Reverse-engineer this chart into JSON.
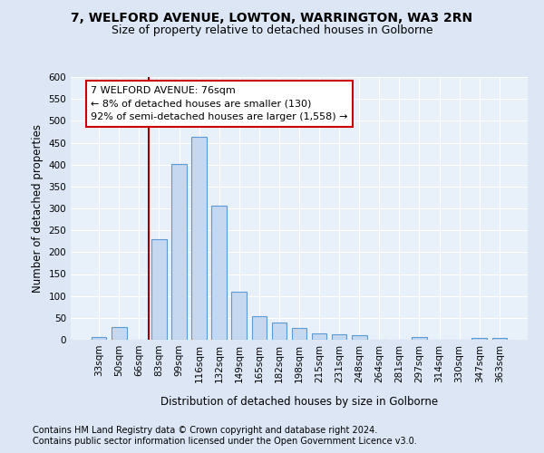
{
  "title": "7, WELFORD AVENUE, LOWTON, WARRINGTON, WA3 2RN",
  "subtitle": "Size of property relative to detached houses in Golborne",
  "xlabel": "Distribution of detached houses by size in Golborne",
  "ylabel": "Number of detached properties",
  "footer1": "Contains HM Land Registry data © Crown copyright and database right 2024.",
  "footer2": "Contains public sector information licensed under the Open Government Licence v3.0.",
  "categories": [
    "33sqm",
    "50sqm",
    "66sqm",
    "83sqm",
    "99sqm",
    "116sqm",
    "132sqm",
    "149sqm",
    "165sqm",
    "182sqm",
    "198sqm",
    "215sqm",
    "231sqm",
    "248sqm",
    "264sqm",
    "281sqm",
    "297sqm",
    "314sqm",
    "330sqm",
    "347sqm",
    "363sqm"
  ],
  "values": [
    7,
    30,
    0,
    229,
    402,
    464,
    307,
    110,
    53,
    39,
    26,
    14,
    13,
    10,
    0,
    0,
    7,
    0,
    0,
    5,
    5
  ],
  "bar_color": "#c5d8f0",
  "bar_edge_color": "#5b9bd5",
  "vline_x_index": 2.5,
  "vline_color": "#990000",
  "annotation_line1": "7 WELFORD AVENUE: 76sqm",
  "annotation_line2": "← 8% of detached houses are smaller (130)",
  "annotation_line3": "92% of semi-detached houses are larger (1,558) →",
  "annotation_box_facecolor": "#ffffff",
  "annotation_box_edgecolor": "#cc0000",
  "ylim": [
    0,
    600
  ],
  "yticks": [
    0,
    50,
    100,
    150,
    200,
    250,
    300,
    350,
    400,
    450,
    500,
    550,
    600
  ],
  "bg_color": "#dce6f4",
  "plot_bg_color": "#e8f0fa",
  "title_fontsize": 10,
  "subtitle_fontsize": 9,
  "axis_label_fontsize": 8.5,
  "tick_fontsize": 7.5,
  "annotation_fontsize": 8,
  "footer_fontsize": 7
}
